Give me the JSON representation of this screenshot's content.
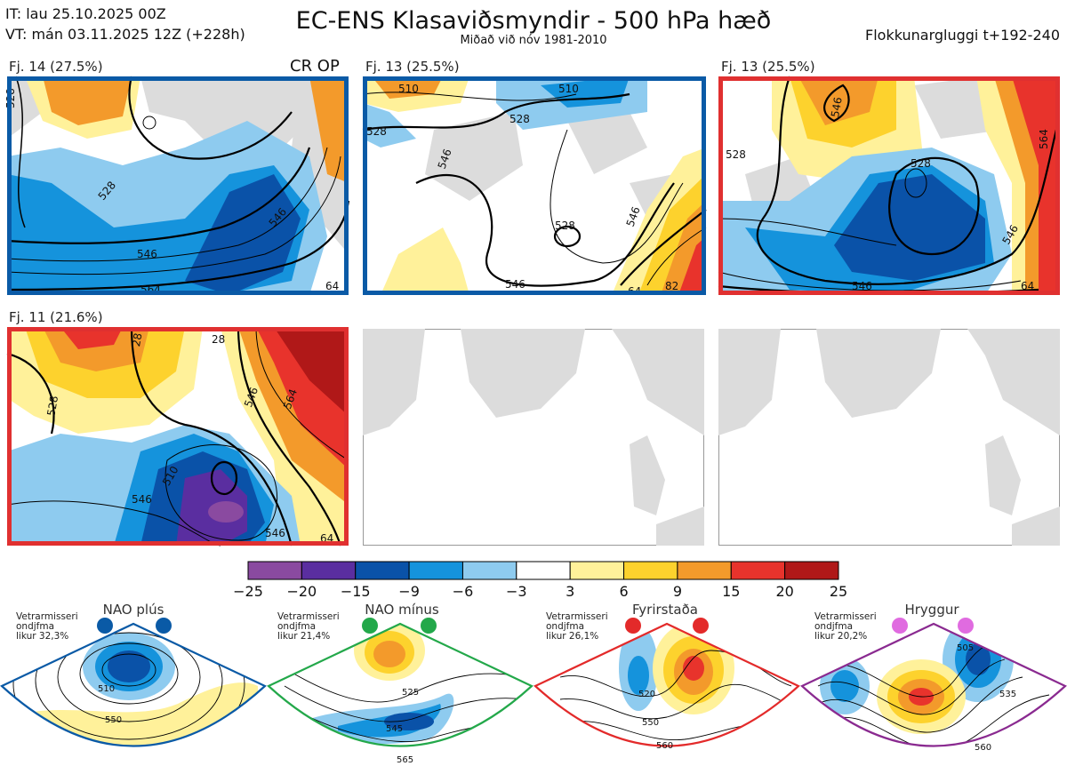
{
  "header": {
    "issue": "IT: lau 25.10.2025 00Z",
    "valid": "VT: mán 03.11.2025 12Z  (+228h)",
    "title": "EC-ENS Klasaviðsmyndir - 500 hPa hæð",
    "subtitle": "Miðað við nóv 1981-2010",
    "window": "Flokkunargluggi t+192-240"
  },
  "panels": [
    {
      "label": "Fj. 14 (27.5%)",
      "badge": "CR OP",
      "frame": "#0a5aa6",
      "contours": [
        "528",
        "528",
        "546",
        "546",
        "564",
        "64"
      ]
    },
    {
      "label": "Fj. 13 (25.5%)",
      "frame": "#0a5aa6",
      "contours": [
        "510",
        "510",
        "528",
        "528",
        "546",
        "528",
        "546",
        "546",
        "64",
        "82"
      ]
    },
    {
      "label": "Fj. 13 (25.5%)",
      "frame": "#e03030",
      "contours": [
        "546",
        "528",
        "528",
        "564",
        "546",
        "546",
        "64"
      ]
    },
    {
      "label": "Fj. 11 (21.6%)",
      "frame": "#e03030",
      "contours": [
        "28",
        "28",
        "528",
        "546",
        "564",
        "510",
        "546",
        "546",
        "64"
      ]
    }
  ],
  "colorbar": {
    "colors": [
      "#8a4aa0",
      "#5a2ea0",
      "#0a52a8",
      "#1593dc",
      "#8ecbef",
      "#ffffff",
      "#fff19a",
      "#fdd22d",
      "#f39a2b",
      "#e8332c",
      "#b01818"
    ],
    "ticks": [
      "−25",
      "−20",
      "−15",
      "−9",
      "−6",
      "−3",
      "3",
      "6",
      "9",
      "15",
      "20",
      "25"
    ]
  },
  "regimes": [
    {
      "name": "NAO plús",
      "stat1": "Vetrarmisseri",
      "stat2": "ondjfma",
      "prob": "likur 32,3%",
      "color": "#0a5aa6",
      "contours": [
        "510",
        "550"
      ]
    },
    {
      "name": "NAO mínus",
      "stat1": "Vetrarmisseri",
      "stat2": "ondjfma",
      "prob": "likur 21,4%",
      "color": "#23a84a",
      "contours": [
        "525",
        "545",
        "565"
      ]
    },
    {
      "name": "Fyrirstaða",
      "stat1": "Vetrarmisseri",
      "stat2": "ondjfma",
      "prob": "likur 26,1%",
      "color": "#e32a2a",
      "contours": [
        "520",
        "550",
        "560"
      ]
    },
    {
      "name": "Hryggur",
      "stat1": "Vetrarmisseri",
      "stat2": "ondjfma",
      "prob": "likur 20,2%",
      "color": "#8a2a90",
      "contours": [
        "505",
        "535",
        "560"
      ]
    }
  ]
}
